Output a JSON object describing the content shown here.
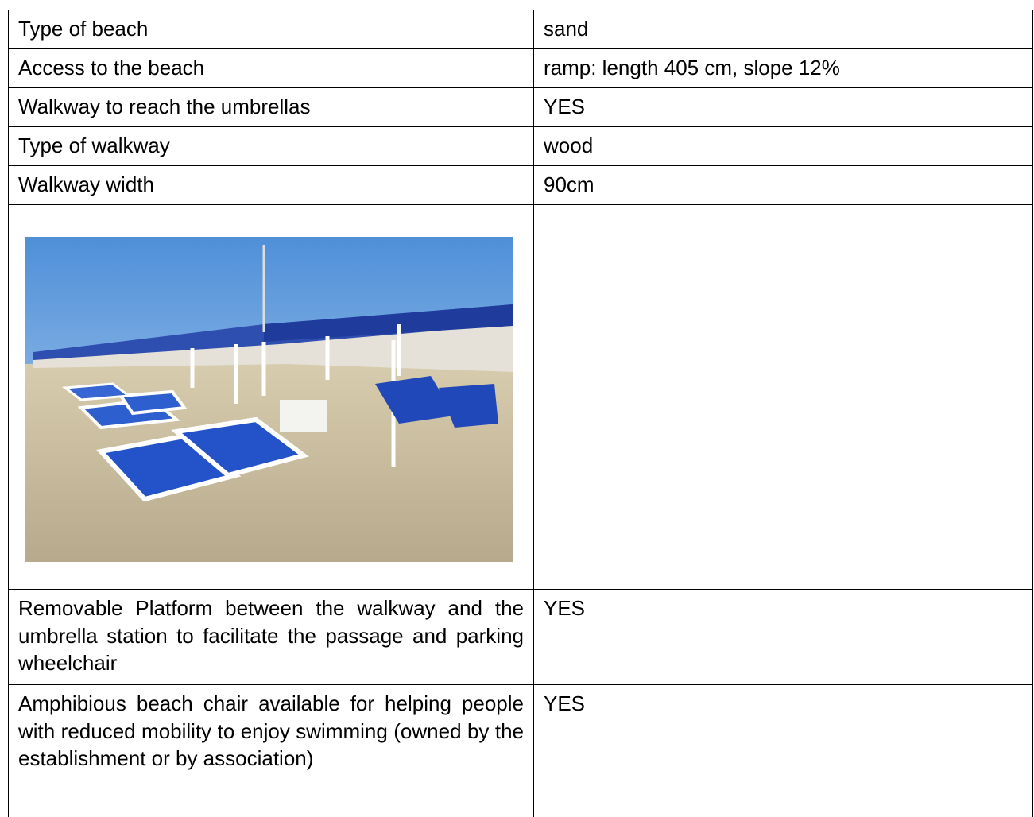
{
  "table": {
    "rows": [
      [
        "Type of beach",
        "sand"
      ],
      [
        "Access to the beach",
        "ramp: length 405 cm, slope 12%"
      ],
      [
        "Walkway to reach the umbrellas",
        "YES"
      ],
      [
        "Type of walkway",
        "wood"
      ],
      [
        "Walkway width",
        "90cm"
      ],
      [
        "Removable Platform between the walkway and the umbrella station to facilitate the passage and parking wheelchair",
        "YES"
      ],
      [
        "Amphibious beach chair available for helping people with reduced mobility to enjoy swimming (owned by the establishment or by association)",
        "YES"
      ]
    ]
  }
}
